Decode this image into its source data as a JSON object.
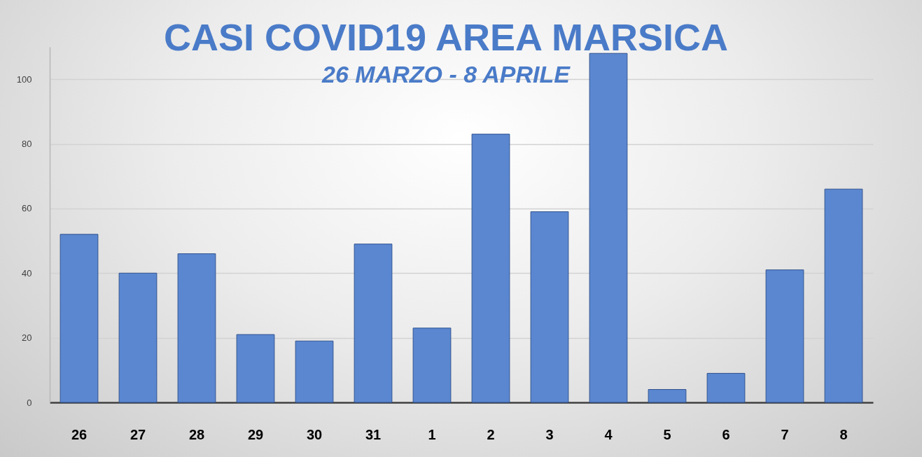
{
  "chart_data": {
    "type": "bar",
    "title": "CASI COVID19 AREA MARSICA",
    "subtitle": "26 MARZO - 8 APRILE",
    "categories": [
      "26",
      "27",
      "28",
      "29",
      "30",
      "31",
      "1",
      "2",
      "3",
      "4",
      "5",
      "6",
      "7",
      "8"
    ],
    "values": [
      52,
      40,
      46,
      21,
      19,
      49,
      23,
      83,
      59,
      108,
      4,
      9,
      41,
      66
    ],
    "color": "#5b87d1",
    "ylim": [
      0,
      110
    ],
    "yticks": [
      0,
      20,
      40,
      60,
      80,
      100
    ],
    "grid": "y"
  }
}
